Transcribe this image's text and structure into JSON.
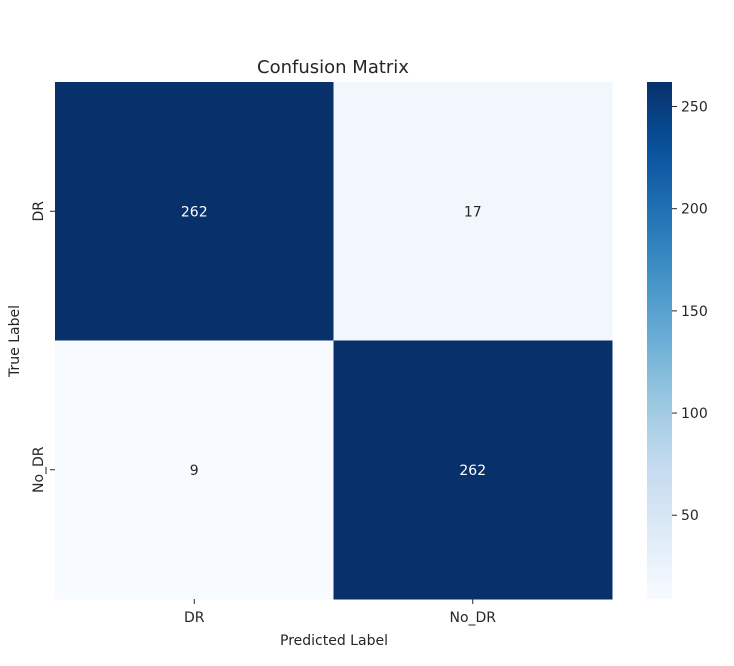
{
  "chart_data": {
    "type": "heatmap",
    "title": "Confusion Matrix",
    "xlabel": "Predicted Label",
    "ylabel": "True Label",
    "x_categories": [
      "DR",
      "No_DR"
    ],
    "y_categories": [
      "DR",
      "No_DR"
    ],
    "matrix": [
      [
        262,
        17
      ],
      [
        9,
        262
      ]
    ],
    "colormap": "Blues",
    "colorbar": {
      "min": 9,
      "max": 262,
      "ticks": [
        50,
        100,
        150,
        200,
        250
      ]
    },
    "colors": {
      "low": "#f7fbff",
      "high": "#08306b",
      "text_on_dark": "#ffffff",
      "text_on_light": "#262626"
    }
  }
}
